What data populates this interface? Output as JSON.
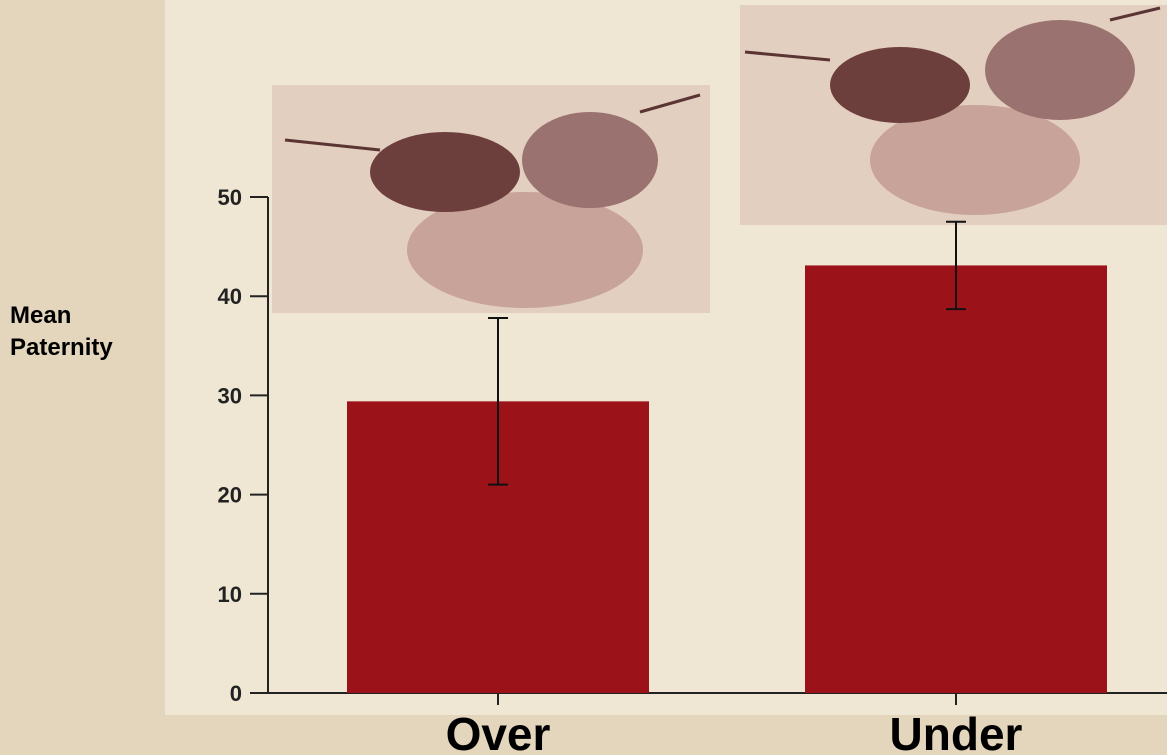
{
  "chart_data": {
    "type": "bar",
    "ylabel": "Mean Paternity",
    "categories": [
      "Over",
      "Under"
    ],
    "values": [
      29.4,
      43.1
    ],
    "errors": [
      8.4,
      4.4
    ],
    "color": "#9b1218",
    "ylim": [
      0,
      50
    ],
    "yticks": [
      0,
      10,
      20,
      30,
      40,
      50
    ]
  }
}
